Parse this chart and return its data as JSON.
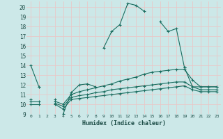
{
  "xlabel": "Humidex (Indice chaleur)",
  "bg_color": "#cce8e8",
  "grid_color": "#e8c8c8",
  "line_color": "#1a6e60",
  "xlim": [
    -0.5,
    23.5
  ],
  "ylim": [
    9,
    20.6
  ],
  "yticks": [
    9,
    10,
    11,
    12,
    13,
    14,
    15,
    16,
    17,
    18,
    19,
    20
  ],
  "xticks": [
    0,
    1,
    2,
    3,
    4,
    5,
    6,
    7,
    8,
    9,
    10,
    11,
    12,
    13,
    14,
    15,
    16,
    17,
    18,
    19,
    20,
    21,
    22,
    23
  ],
  "series": [
    [
      14,
      11.8,
      null,
      null,
      null,
      null,
      null,
      null,
      null,
      15.8,
      17.5,
      18.2,
      20.4,
      20.2,
      19.6,
      null,
      18.5,
      17.5,
      17.8,
      13.8,
      null,
      null,
      null,
      null
    ],
    [
      null,
      null,
      null,
      null,
      9.0,
      11.2,
      12.0,
      12.1,
      11.8,
      null,
      null,
      null,
      null,
      null,
      null,
      null,
      null,
      null,
      null,
      13.8,
      11.8,
      11.8,
      11.8,
      11.8
    ],
    [
      null,
      11.8,
      null,
      10.5,
      null,
      null,
      null,
      null,
      null,
      null,
      null,
      null,
      null,
      null,
      null,
      null,
      null,
      null,
      null,
      null,
      null,
      null,
      null,
      null
    ],
    [
      10.5,
      null,
      null,
      10.3,
      10.0,
      11.0,
      11.3,
      11.5,
      11.7,
      11.9,
      12.1,
      12.4,
      12.6,
      12.8,
      13.1,
      13.3,
      13.4,
      13.5,
      13.6,
      13.6,
      12.5,
      11.8,
      11.8,
      11.8
    ],
    [
      10.3,
      10.3,
      null,
      10.1,
      9.8,
      10.7,
      10.9,
      11.0,
      11.2,
      11.3,
      11.5,
      11.6,
      11.7,
      11.8,
      11.9,
      12.0,
      12.1,
      12.2,
      12.3,
      12.3,
      11.8,
      11.5,
      11.5,
      11.5
    ],
    [
      10.0,
      10.0,
      null,
      10.0,
      9.5,
      10.5,
      10.6,
      10.7,
      10.8,
      10.9,
      11.0,
      11.1,
      11.2,
      11.3,
      11.4,
      11.5,
      11.6,
      11.7,
      11.8,
      11.9,
      11.5,
      11.3,
      11.3,
      11.3
    ]
  ]
}
